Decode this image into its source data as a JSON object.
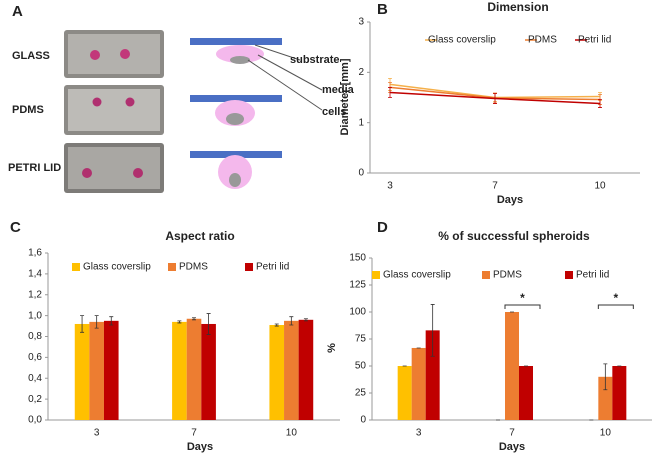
{
  "panel_a": {
    "label": "A",
    "rows": [
      "GLASS",
      "PDMS",
      "PETRI LID"
    ],
    "diagram_labels": [
      "substrate",
      "media",
      "cells"
    ]
  },
  "chart_data": [
    {
      "type": "line",
      "panel_label": "B",
      "title": "Dimension",
      "x_label": "Days",
      "y_label": "Diameter [mm]",
      "categories": [
        "3",
        "7",
        "10"
      ],
      "ylim": [
        0,
        3
      ],
      "yticks": [
        0,
        1,
        2,
        3
      ],
      "series": [
        {
          "name": "Glass coverslip",
          "color": "#f5b04a",
          "values": [
            1.76,
            1.5,
            1.52
          ],
          "errors": [
            0.12,
            0.08,
            0.08
          ]
        },
        {
          "name": "PDMS",
          "color": "#ed7d31",
          "values": [
            1.7,
            1.49,
            1.46
          ],
          "errors": [
            0.1,
            0.1,
            0.1
          ]
        },
        {
          "name": "Petri lid",
          "color": "#c00000",
          "values": [
            1.6,
            1.48,
            1.38
          ],
          "errors": [
            0.1,
            0.1,
            0.08
          ]
        }
      ]
    },
    {
      "type": "bar",
      "panel_label": "C",
      "title": "Aspect ratio",
      "x_label": "Days",
      "categories": [
        "3",
        "7",
        "10"
      ],
      "ylim": [
        0,
        1.6
      ],
      "yticks": [
        {
          "value": 0,
          "label": "0,0"
        },
        {
          "value": 0.2,
          "label": "0,2"
        },
        {
          "value": 0.4,
          "label": "0,4"
        },
        {
          "value": 0.6,
          "label": "0,6"
        },
        {
          "value": 0.8,
          "label": "0,8"
        },
        {
          "value": 1,
          "label": "1,0"
        },
        {
          "value": 1.2,
          "label": "1,2"
        },
        {
          "value": 1.4,
          "label": "1,4"
        },
        {
          "value": 1.6,
          "label": "1,6"
        }
      ],
      "series": [
        {
          "name": "Glass coverslip",
          "color": "#ffc000",
          "values": [
            0.92,
            0.94,
            0.91
          ],
          "errors": [
            0.08,
            0.01,
            0.01
          ]
        },
        {
          "name": "PDMS",
          "color": "#ed7d31",
          "values": [
            0.94,
            0.97,
            0.95
          ],
          "errors": [
            0.06,
            0.01,
            0.04
          ]
        },
        {
          "name": "Petri lid",
          "color": "#c00000",
          "values": [
            0.95,
            0.92,
            0.96
          ],
          "errors": [
            0.04,
            0.1,
            0.01
          ]
        }
      ]
    },
    {
      "type": "bar",
      "panel_label": "D",
      "title": "% of successful spheroids",
      "x_label": "Days",
      "y_label": "%",
      "categories": [
        "3",
        "7",
        "10"
      ],
      "ylim": [
        0,
        150
      ],
      "yticks": [
        0,
        25,
        50,
        75,
        100,
        125,
        150
      ],
      "series": [
        {
          "name": "Glass coverslip",
          "color": "#ffc000",
          "values": [
            50,
            0,
            0
          ],
          "errors": [
            0,
            0,
            0
          ]
        },
        {
          "name": "PDMS",
          "color": "#ed7d31",
          "values": [
            66.7,
            100,
            40
          ],
          "errors": [
            0,
            0,
            12
          ]
        },
        {
          "name": "Petri lid",
          "color": "#c00000",
          "values": [
            83,
            50,
            50
          ],
          "errors": [
            24,
            0,
            0
          ]
        }
      ],
      "annotations": [
        {
          "text": "*",
          "category": "7"
        },
        {
          "text": "*",
          "category": "10"
        }
      ]
    }
  ]
}
